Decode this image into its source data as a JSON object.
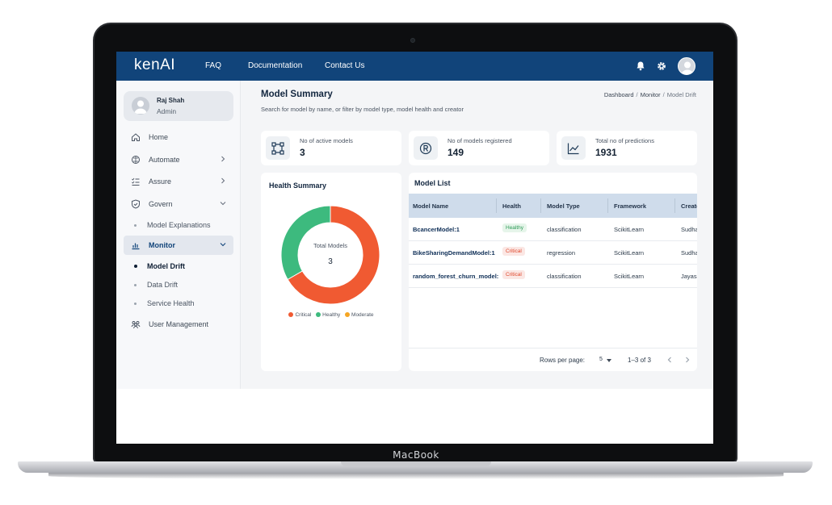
{
  "device": {
    "label": "MacBook"
  },
  "header": {
    "brand": "kenAI",
    "nav": [
      "FAQ",
      "Documentation",
      "Contact Us"
    ],
    "icons": [
      "bell-icon",
      "gear-icon",
      "user-avatar"
    ]
  },
  "sidebar": {
    "user": {
      "name": "Raj Shah",
      "role": "Admin"
    },
    "items": [
      {
        "label": "Home",
        "icon": "home-icon"
      },
      {
        "label": "Automate",
        "icon": "brain-icon",
        "chevron": "right"
      },
      {
        "label": "Assure",
        "icon": "checklist-icon",
        "chevron": "right"
      },
      {
        "label": "Govern",
        "icon": "shield-icon",
        "chevron": "down"
      },
      {
        "label": "Model Explanations"
      },
      {
        "label": "Monitor",
        "icon": "bar-chart-icon",
        "chevron": "down"
      },
      {
        "label": "Model Drift"
      },
      {
        "label": "Data Drift"
      },
      {
        "label": "Service Health"
      },
      {
        "label": "User Management",
        "icon": "users-icon"
      }
    ]
  },
  "page": {
    "title": "Model Summary",
    "subtitle": "Search for model by name, or filter by model type, model health and creator",
    "breadcrumb": [
      "Dashboard",
      "Monitor",
      "Model Drift"
    ]
  },
  "stats": [
    {
      "label": "No of active models",
      "value": "3",
      "icon": "nodes-icon"
    },
    {
      "label": "No of models registered",
      "value": "149",
      "icon": "registered-icon"
    },
    {
      "label": "Total no of predictions",
      "value": "1931",
      "icon": "trend-icon"
    }
  ],
  "health": {
    "title": "Health Summary",
    "center_label": "Total Models",
    "center_value": "3",
    "legend": [
      "Critical",
      "Healthy",
      "Moderate"
    ],
    "colors": {
      "critical": "#f05a32",
      "healthy": "#3dba7e",
      "moderate": "#f5a623"
    }
  },
  "chart_data": {
    "type": "pie",
    "categories": [
      "Critical",
      "Healthy",
      "Moderate"
    ],
    "values": [
      2,
      1,
      0
    ]
  },
  "model_list": {
    "title": "Model List",
    "columns": [
      "Model Name",
      "Health",
      "Model Type",
      "Framework",
      "Create"
    ],
    "rows": [
      {
        "name": "BcancerModel:1",
        "health": "Healthy",
        "type": "classification",
        "framework": "ScikitLearn",
        "creator": "Sudha"
      },
      {
        "name": "BikeSharingDemandModel:1",
        "health": "Critical",
        "type": "regression",
        "framework": "ScikitLearn",
        "creator": "Sudha"
      },
      {
        "name": "random_forest_churn_model:",
        "health": "Critical",
        "type": "classification",
        "framework": "ScikitLearn",
        "creator": "Jayasl"
      }
    ],
    "pager": {
      "rows_label": "Rows per page:",
      "rows_value": "5",
      "range": "1–3 of 3"
    }
  }
}
